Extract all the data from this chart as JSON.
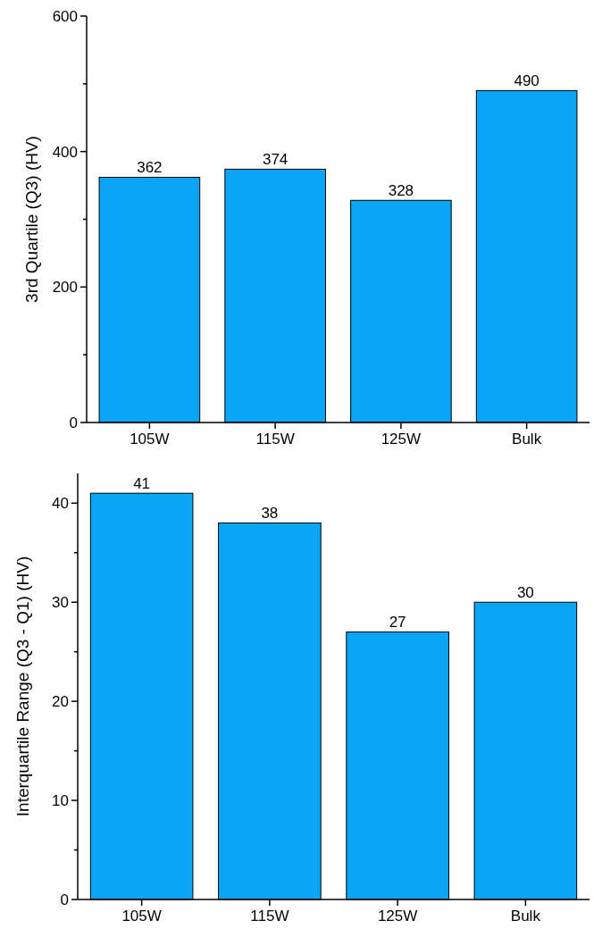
{
  "chart_data": [
    {
      "type": "bar",
      "ylabel": "3rd Quartile (Q3) (HV)",
      "categories": [
        "105W",
        "115W",
        "125W",
        "Bulk"
      ],
      "values": [
        362,
        374,
        328,
        490
      ],
      "color": "#0aa5f5",
      "ylim": [
        0,
        600
      ],
      "yticks": [
        0,
        {
          "value": 100,
          "label": null
        },
        200,
        {
          "value": 300,
          "label": null
        },
        400,
        {
          "value": 500,
          "label": null
        },
        600
      ],
      "data_labels": true
    },
    {
      "type": "bar",
      "ylabel": "Interquartile Range (Q3 - Q1) (HV)",
      "categories": [
        "105W",
        "115W",
        "125W",
        "Bulk"
      ],
      "values": [
        41,
        38,
        27,
        30
      ],
      "color": "#0aa5f5",
      "ylim": [
        0,
        43
      ],
      "yticks": [
        0,
        {
          "value": 5,
          "label": null
        },
        10,
        {
          "value": 15,
          "label": null
        },
        20,
        {
          "value": 25,
          "label": null
        },
        30,
        {
          "value": 35,
          "label": null
        },
        40
      ],
      "data_labels": true
    }
  ]
}
